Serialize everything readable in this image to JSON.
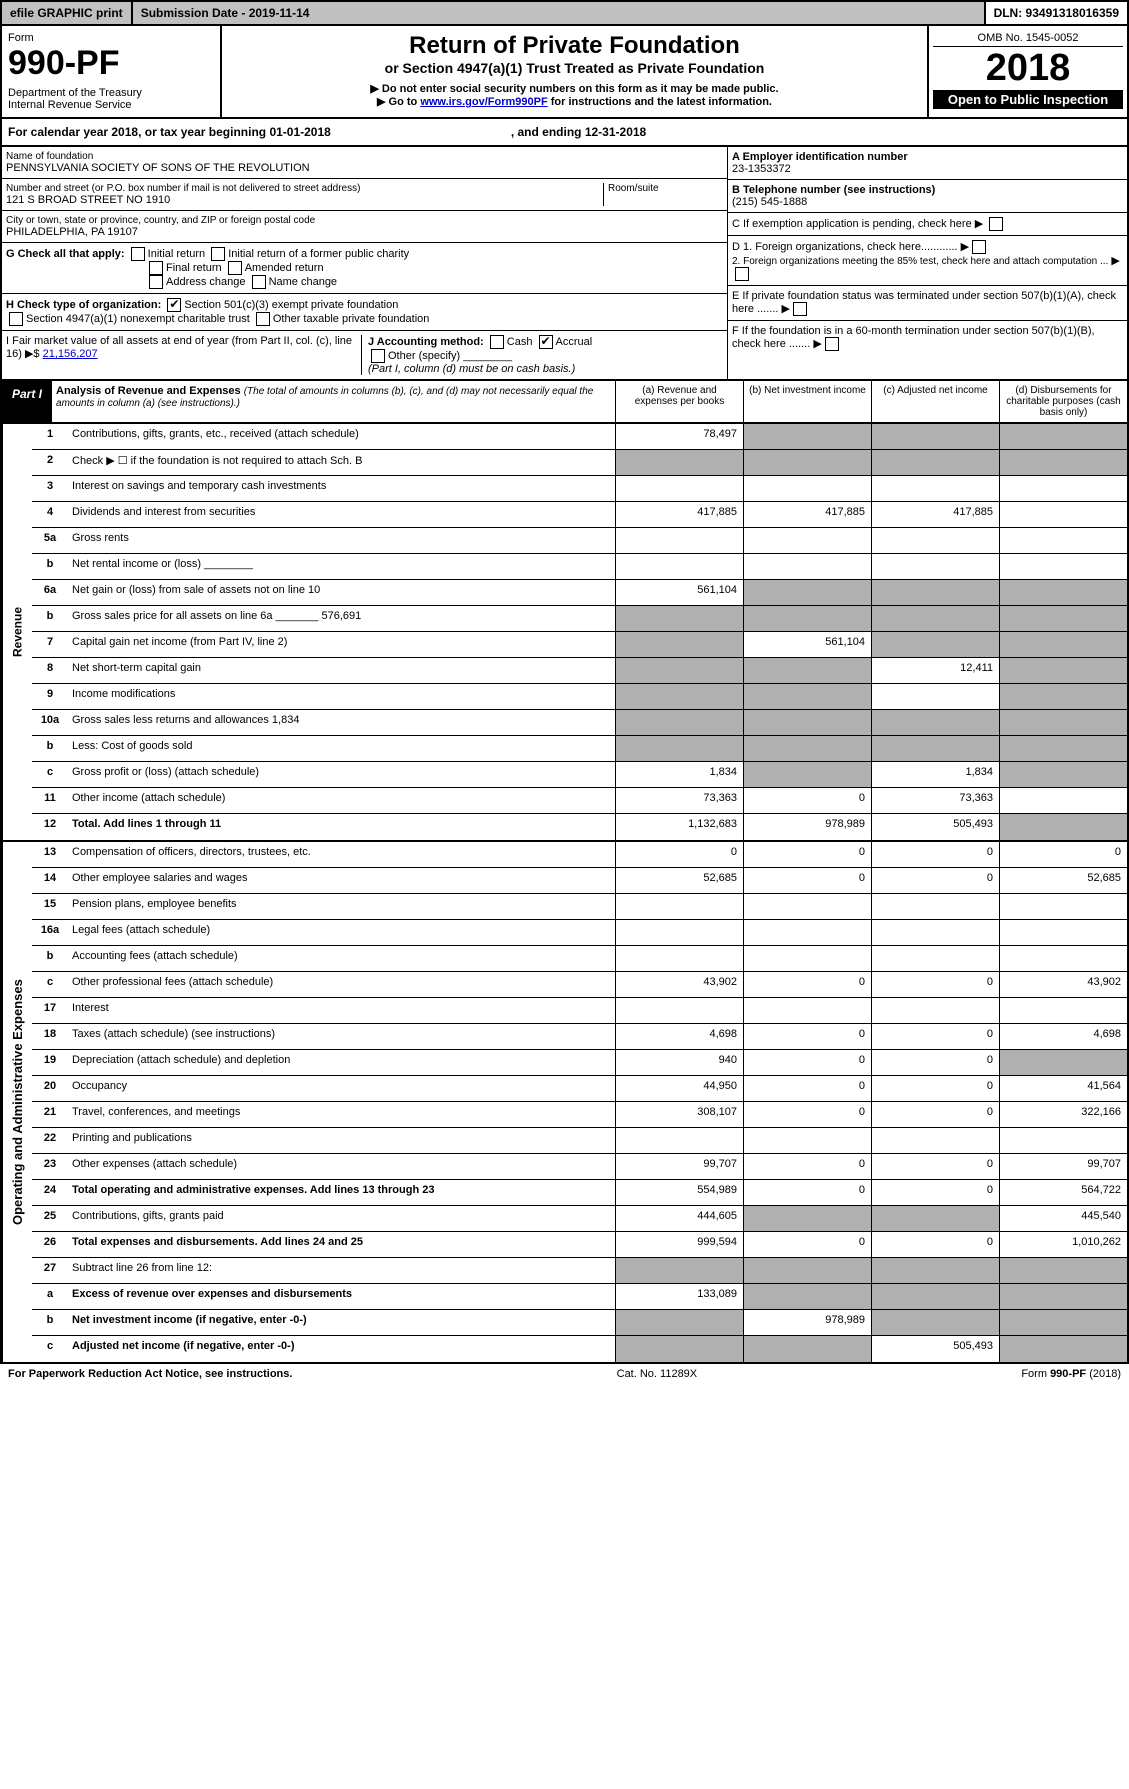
{
  "top": {
    "efile": "efile GRAPHIC print",
    "subdate_lbl": "Submission Date - 2019-11-14",
    "dln": "DLN: 93491318016359"
  },
  "hdr": {
    "form": "Form",
    "num": "990-PF",
    "dept": "Department of the Treasury",
    "irs": "Internal Revenue Service",
    "title": "Return of Private Foundation",
    "sub": "or Section 4947(a)(1) Trust Treated as Private Foundation",
    "w1": "▶ Do not enter social security numbers on this form as it may be made public.",
    "w2": "▶ Go to ",
    "link": "www.irs.gov/Form990PF",
    "w3": " for instructions and the latest information.",
    "omb": "OMB No. 1545-0052",
    "year": "2018",
    "open": "Open to Public Inspection"
  },
  "cal": {
    "a": "For calendar year 2018, or tax year beginning 01-01-2018",
    "b": ", and ending 12-31-2018"
  },
  "info": {
    "name_lbl": "Name of foundation",
    "name": "PENNSYLVANIA SOCIETY OF SONS OF THE REVOLUTION",
    "addr_lbl": "Number and street (or P.O. box number if mail is not delivered to street address)",
    "addr": "121 S BROAD STREET NO 1910",
    "room": "Room/suite",
    "city_lbl": "City or town, state or province, country, and ZIP or foreign postal code",
    "city": "PHILADELPHIA, PA  19107",
    "a_lbl": "A Employer identification number",
    "a": "23-1353372",
    "b_lbl": "B Telephone number (see instructions)",
    "b": "(215) 545-1888",
    "c": "C If exemption application is pending, check here",
    "d1": "D 1. Foreign organizations, check here............",
    "d2": "2. Foreign organizations meeting the 85% test, check here and attach computation ...",
    "e": "E  If private foundation status was terminated under section 507(b)(1)(A), check here .......",
    "f": "F  If the foundation is in a 60-month termination under section 507(b)(1)(B), check here .......",
    "g": "G Check all that apply:",
    "g1": "Initial return",
    "g2": "Initial return of a former public charity",
    "g3": "Final return",
    "g4": "Amended return",
    "g5": "Address change",
    "g6": "Name change",
    "h": "H Check type of organization:",
    "h1": "Section 501(c)(3) exempt private foundation",
    "h2": "Section 4947(a)(1) nonexempt charitable trust",
    "h3": "Other taxable private foundation",
    "i": "I Fair market value of all assets at end of year (from Part II, col. (c), line 16) ▶$ ",
    "i_v": "21,156,207",
    "j": "J Accounting method:",
    "j1": "Cash",
    "j2": "Accrual",
    "j3": "Other (specify)",
    "j4": "(Part I, column (d) must be on cash basis.)"
  },
  "part1": {
    "lbl": "Part I",
    "t": "Analysis of Revenue and Expenses",
    "sub": "(The total of amounts in columns (b), (c), and (d) may not necessarily equal the amounts in column (a) (see instructions).)",
    "ca": "(a)  Revenue and expenses per books",
    "cb": "(b)  Net investment income",
    "cc": "(c)  Adjusted net income",
    "cd": "(d)  Disbursements for charitable purposes (cash basis only)"
  },
  "rev": [
    {
      "n": "1",
      "d": "Contributions, gifts, grants, etc., received (attach schedule)",
      "a": "78,497",
      "shade_bcd": true
    },
    {
      "n": "2",
      "d": "Check ▶ ☐ if the foundation is not required to attach Sch. B",
      "shade_all": true
    },
    {
      "n": "3",
      "d": "Interest on savings and temporary cash investments"
    },
    {
      "n": "4",
      "d": "Dividends and interest from securities",
      "a": "417,885",
      "b": "417,885",
      "c": "417,885"
    },
    {
      "n": "5a",
      "d": "Gross rents"
    },
    {
      "n": "b",
      "d": "Net rental income or (loss) ________"
    },
    {
      "n": "6a",
      "d": "Net gain or (loss) from sale of assets not on line 10",
      "a": "561,104",
      "shade_bcd": true
    },
    {
      "n": "b",
      "d": "Gross sales price for all assets on line 6a _______ 576,691",
      "shade_all": true
    },
    {
      "n": "7",
      "d": "Capital gain net income (from Part IV, line 2)",
      "b": "561,104",
      "shade_a": true,
      "shade_cd": true
    },
    {
      "n": "8",
      "d": "Net short-term capital gain",
      "c": "12,411",
      "shade_ab": true,
      "shade_d": true
    },
    {
      "n": "9",
      "d": "Income modifications",
      "shade_ab": true,
      "shade_d": true
    },
    {
      "n": "10a",
      "d": "Gross sales less returns and allowances          1,834",
      "shade_all": true
    },
    {
      "n": "b",
      "d": "Less: Cost of goods sold",
      "shade_all": true
    },
    {
      "n": "c",
      "d": "Gross profit or (loss) (attach schedule)",
      "a": "1,834",
      "c": "1,834",
      "shade_b": true,
      "shade_d": true
    },
    {
      "n": "11",
      "d": "Other income (attach schedule)",
      "a": "73,363",
      "b": "0",
      "c": "73,363"
    },
    {
      "n": "12",
      "d": "Total. Add lines 1 through 11",
      "a": "1,132,683",
      "b": "978,989",
      "c": "505,493",
      "bold": true,
      "shade_d": true
    }
  ],
  "exp": [
    {
      "n": "13",
      "d": "Compensation of officers, directors, trustees, etc.",
      "a": "0",
      "b": "0",
      "c": "0",
      "dd": "0"
    },
    {
      "n": "14",
      "d": "Other employee salaries and wages",
      "a": "52,685",
      "b": "0",
      "c": "0",
      "dd": "52,685"
    },
    {
      "n": "15",
      "d": "Pension plans, employee benefits"
    },
    {
      "n": "16a",
      "d": "Legal fees (attach schedule)"
    },
    {
      "n": "b",
      "d": "Accounting fees (attach schedule)"
    },
    {
      "n": "c",
      "d": "Other professional fees (attach schedule)",
      "a": "43,902",
      "b": "0",
      "c": "0",
      "dd": "43,902"
    },
    {
      "n": "17",
      "d": "Interest"
    },
    {
      "n": "18",
      "d": "Taxes (attach schedule) (see instructions)",
      "a": "4,698",
      "b": "0",
      "c": "0",
      "dd": "4,698"
    },
    {
      "n": "19",
      "d": "Depreciation (attach schedule) and depletion",
      "a": "940",
      "b": "0",
      "c": "0",
      "shade_d": true
    },
    {
      "n": "20",
      "d": "Occupancy",
      "a": "44,950",
      "b": "0",
      "c": "0",
      "dd": "41,564"
    },
    {
      "n": "21",
      "d": "Travel, conferences, and meetings",
      "a": "308,107",
      "b": "0",
      "c": "0",
      "dd": "322,166"
    },
    {
      "n": "22",
      "d": "Printing and publications"
    },
    {
      "n": "23",
      "d": "Other expenses (attach schedule)",
      "a": "99,707",
      "b": "0",
      "c": "0",
      "dd": "99,707"
    },
    {
      "n": "24",
      "d": "Total operating and administrative expenses. Add lines 13 through 23",
      "a": "554,989",
      "b": "0",
      "c": "0",
      "dd": "564,722",
      "bold": true
    },
    {
      "n": "25",
      "d": "Contributions, gifts, grants paid",
      "a": "444,605",
      "dd": "445,540",
      "shade_bc": true
    },
    {
      "n": "26",
      "d": "Total expenses and disbursements. Add lines 24 and 25",
      "a": "999,594",
      "b": "0",
      "c": "0",
      "dd": "1,010,262",
      "bold": true
    },
    {
      "n": "27",
      "d": "Subtract line 26 from line 12:",
      "shade_all": true
    },
    {
      "n": "a",
      "d": "Excess of revenue over expenses and disbursements",
      "a": "133,089",
      "bold": true,
      "shade_bcd": true
    },
    {
      "n": "b",
      "d": "Net investment income (if negative, enter -0-)",
      "b": "978,989",
      "bold": true,
      "shade_a": true,
      "shade_cd": true
    },
    {
      "n": "c",
      "d": "Adjusted net income (if negative, enter -0-)",
      "c": "505,493",
      "bold": true,
      "shade_ab": true,
      "shade_d": true
    }
  ],
  "ftr": {
    "a": "For Paperwork Reduction Act Notice, see instructions.",
    "b": "Cat. No. 11289X",
    "c": "Form 990-PF (2018)"
  },
  "sides": {
    "rev": "Revenue",
    "exp": "Operating and Administrative Expenses"
  }
}
